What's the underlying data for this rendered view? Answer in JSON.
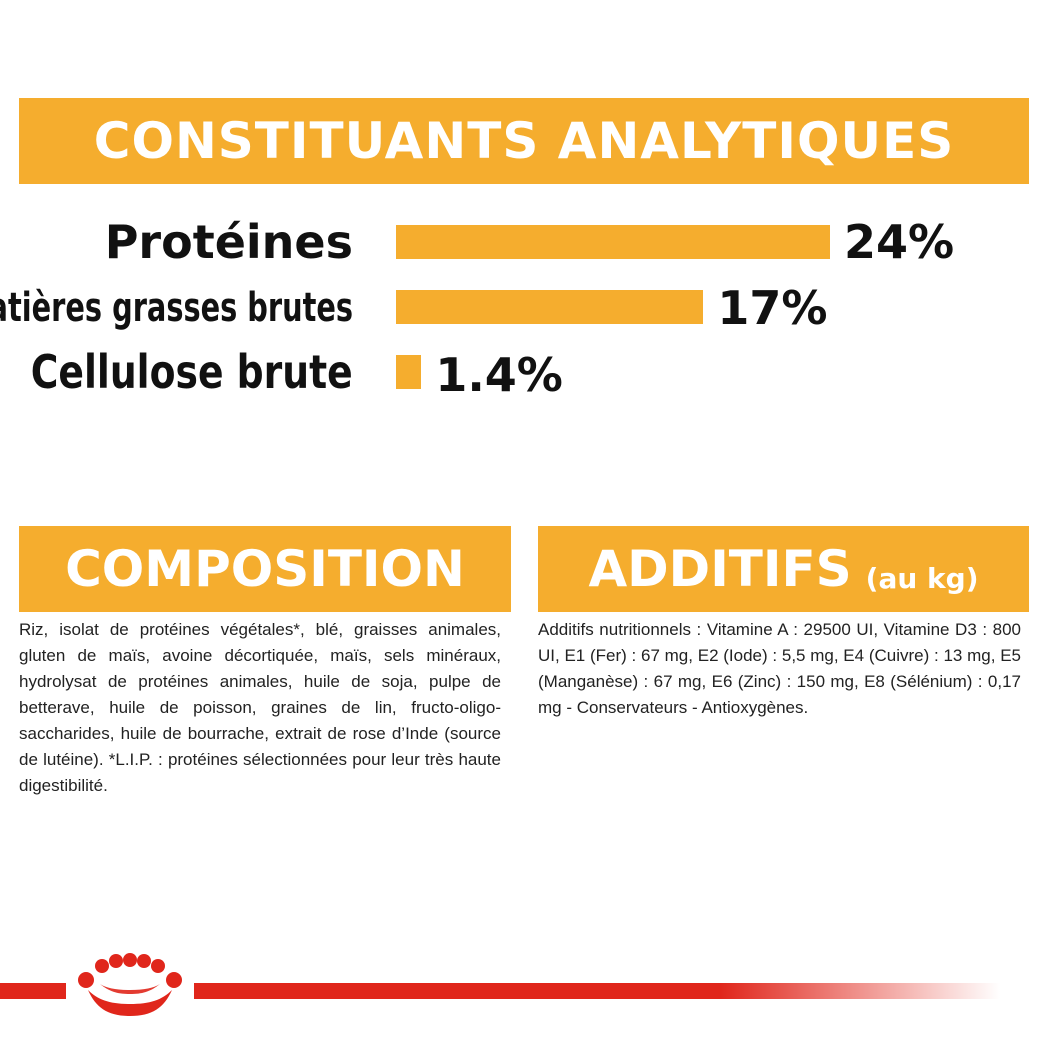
{
  "analytics": {
    "title": "CONSTITUANTS ANALYTIQUES",
    "rows": [
      {
        "label": "Protéines",
        "value": 24,
        "display": "24%"
      },
      {
        "label": "Matières grasses brutes",
        "value": 17,
        "display": "17%"
      },
      {
        "label": "Cellulose brute",
        "value": 1.4,
        "display": "1.4%"
      }
    ]
  },
  "composition": {
    "title": "COMPOSITION",
    "text": "Riz, isolat de protéines végétales*, blé, graisses animales, gluten de maïs, avoine décortiquée, maïs, sels minéraux, hydrolysat de protéines animales, huile de soja, pulpe de betterave, huile de poisson, graines de lin, fructo-oligo-saccharides, huile de bourrache, extrait de rose d’Inde (source de lutéine). *L.I.P. : protéines sélectionnées pour leur très haute digestibilité."
  },
  "additives": {
    "title": "ADDITIFS",
    "title_suffix": "(au kg)",
    "text": "Additifs nutritionnels : Vitamine A : 29500 UI, Vitamine D3 : 800 UI, E1 (Fer) : 67 mg, E2 (Iode) : 5,5 mg, E4 (Cuivre) : 13 mg, E5 (Manganèse) : 67 mg, E6 (Zinc) : 150 mg, E8 (Sélénium) : 0,17 mg - Conservateurs - Antioxygènes."
  },
  "colors": {
    "accent": "#f5ad2e",
    "brand_red": "#e0261b"
  },
  "footer": {
    "logo_icon": "crown-logo-icon"
  }
}
